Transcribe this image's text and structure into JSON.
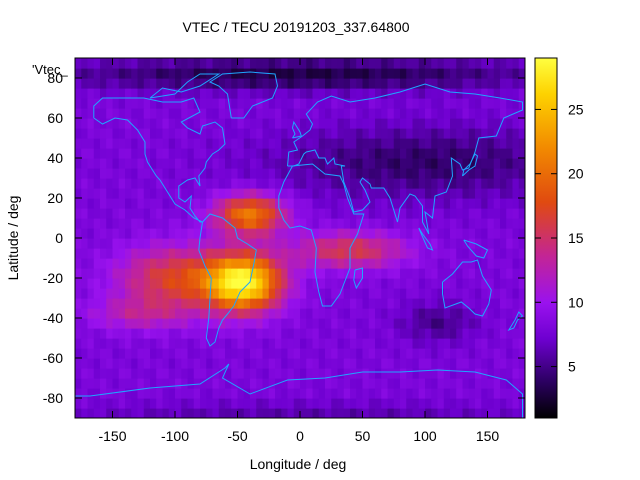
{
  "chart_data": {
    "type": "heatmap",
    "title": "VTEC / TECU 20191203_337.64800",
    "xlabel": "Longitude / deg",
    "ylabel": "Latitude / deg",
    "series_label": "'Vtec_",
    "xlim": [
      -180,
      180
    ],
    "ylim": [
      -90,
      90
    ],
    "x_ticks": [
      -150,
      -100,
      -50,
      0,
      50,
      100,
      150
    ],
    "y_ticks": [
      -80,
      -60,
      -40,
      -20,
      0,
      20,
      40,
      60,
      80
    ],
    "colorbar": {
      "range": [
        1,
        29
      ],
      "ticks": [
        5,
        10,
        15,
        20,
        25
      ],
      "colors": [
        "#000000",
        "#2b0060",
        "#6e00d0",
        "#9a12ee",
        "#c32595",
        "#e04a10",
        "#f28a00",
        "#fdd200",
        "#ffff40"
      ],
      "color_stops": [
        0,
        0.1,
        0.22,
        0.32,
        0.45,
        0.6,
        0.75,
        0.9,
        1
      ]
    },
    "field_features": [
      {
        "name": "south-america-atlantic maximum",
        "lon": -45,
        "lat": -22,
        "value": 28
      },
      {
        "name": "east-pacific crest",
        "lon": -100,
        "lat": -18,
        "value": 18
      },
      {
        "name": "north equatorial crest",
        "lon": -40,
        "lat": 12,
        "value": 22
      },
      {
        "name": "africa-indian ocean extension",
        "lon": 40,
        "lat": -6,
        "value": 17
      },
      {
        "name": "background",
        "value": 8
      },
      {
        "name": "polar minimum",
        "value": 3
      }
    ],
    "coastline_color": "#1fa6ff"
  }
}
